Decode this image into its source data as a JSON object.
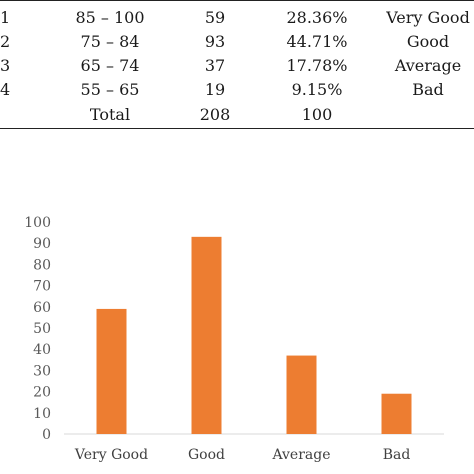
{
  "table": {
    "rows": [
      {
        "no": "1",
        "range": "85 – 100",
        "count": "59",
        "percent": "28.36%",
        "category": "Very Good"
      },
      {
        "no": "2",
        "range": "75 – 84",
        "count": "93",
        "percent": "44.71%",
        "category": "Good"
      },
      {
        "no": "3",
        "range": "65 – 74",
        "count": "37",
        "percent": "17.78%",
        "category": "Average"
      },
      {
        "no": "4",
        "range": "55 – 65",
        "count": "19",
        "percent": "9.15%",
        "category": "Bad"
      }
    ],
    "total": {
      "label": "Total",
      "count": "208",
      "percent": "100"
    }
  },
  "chart_data": {
    "type": "bar",
    "categories": [
      "Very Good",
      "Good",
      "Average",
      "Bad"
    ],
    "values": [
      59,
      93,
      37,
      19
    ],
    "title": "",
    "xlabel": "",
    "ylabel": "",
    "ylim": [
      0,
      100
    ],
    "yticks": [
      0,
      10,
      20,
      30,
      40,
      50,
      60,
      70,
      80,
      90,
      100
    ],
    "grid": false,
    "legend": "none",
    "bar_color": "#ED7D31",
    "axis_color": "#D9D9D9"
  }
}
